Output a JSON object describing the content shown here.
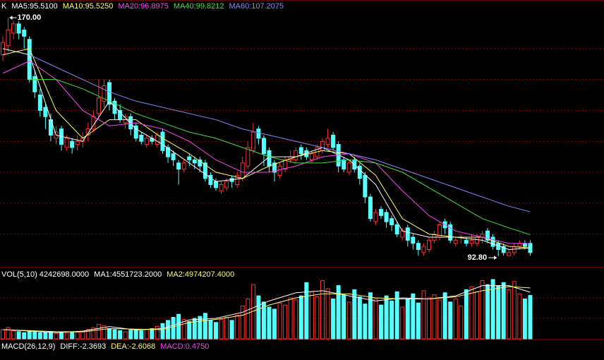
{
  "chart_data": [
    {
      "type": "candlestick",
      "legend": [
        {
          "text": "K",
          "color": "#ffffff"
        },
        {
          "text": "MA5:95.5100",
          "color": "#ffffff"
        },
        {
          "text": "MA10:95.5250",
          "color": "#ffff66"
        },
        {
          "text": "MA20:96.8975",
          "color": "#ff40ff"
        },
        {
          "text": "MA40:99.8212",
          "color": "#40e040"
        },
        {
          "text": "MA60:107.2075",
          "color": "#8888ff"
        }
      ],
      "up_color": "#ff3232",
      "down_color": "#54ffff",
      "ylim": [
        89.4,
        172.3
      ],
      "grid_lines": [
        100,
        110,
        120,
        130,
        140,
        150,
        160
      ],
      "open": [
        158,
        161,
        165,
        168,
        166,
        163,
        151,
        145,
        141,
        137,
        131,
        134,
        128,
        130,
        129,
        130,
        132,
        134,
        139,
        143,
        149,
        143,
        140,
        136,
        138,
        135,
        132,
        129,
        131,
        129,
        133,
        128,
        126,
        123,
        121,
        125,
        124,
        124,
        123,
        119,
        117,
        114,
        115,
        118,
        116,
        118,
        122,
        127,
        134,
        131,
        127,
        123,
        119,
        121,
        124,
        124,
        128,
        127,
        124,
        125,
        127,
        129,
        132,
        129,
        124,
        120,
        124,
        122,
        119,
        112,
        104,
        108,
        107,
        105,
        103,
        99,
        102,
        99,
        97,
        94,
        95,
        98,
        99,
        104,
        103,
        97,
        99,
        98,
        97,
        97,
        99,
        101,
        99,
        97,
        96,
        93,
        94,
        96,
        97,
        97
      ],
      "high": [
        164,
        170,
        169,
        169,
        167,
        164,
        153,
        147,
        142,
        139,
        135,
        135,
        132,
        131,
        132,
        133,
        136,
        140,
        150,
        150,
        150,
        144,
        142,
        139,
        139,
        136,
        133,
        132,
        132,
        133,
        134,
        129,
        127,
        124,
        124,
        126,
        125,
        125,
        124,
        120,
        118,
        117,
        118,
        119,
        120,
        125,
        130,
        136,
        135,
        132,
        128,
        124,
        123,
        125,
        127,
        128,
        129,
        128,
        127,
        129,
        131,
        134,
        133,
        130,
        125,
        124,
        125,
        123,
        120,
        113,
        108,
        109,
        108,
        106,
        104,
        102,
        103,
        100,
        98,
        97,
        99,
        101,
        104,
        105,
        104,
        99,
        100,
        99,
        100,
        100,
        101,
        102,
        100,
        98,
        97,
        95,
        97,
        98,
        98,
        98
      ],
      "low": [
        156,
        159,
        163,
        163,
        160,
        149,
        144,
        138,
        134,
        130,
        129,
        127,
        127,
        126,
        127,
        128,
        130,
        133,
        137,
        141,
        140,
        137,
        136,
        134,
        132,
        130,
        129,
        128,
        129,
        128,
        126,
        123,
        122,
        116,
        120,
        122,
        121,
        120,
        117,
        115,
        114,
        113,
        114,
        115,
        115,
        117,
        121,
        126,
        129,
        122,
        120,
        117,
        118,
        120,
        123,
        123,
        124,
        124,
        123,
        124,
        126,
        128,
        127,
        120,
        120,
        119,
        120,
        116,
        110,
        104,
        103,
        105,
        102,
        101,
        99,
        98,
        96,
        95,
        93,
        93,
        94,
        97,
        98,
        100,
        97,
        96,
        97,
        96,
        96,
        96,
        97,
        97,
        95,
        92.8,
        93,
        93,
        93,
        95,
        95,
        93
      ],
      "close": [
        162,
        166,
        168,
        165,
        164,
        150,
        146,
        140,
        138,
        132,
        133,
        129,
        131,
        128,
        130,
        131,
        134,
        138,
        144,
        148,
        142,
        139,
        137,
        138,
        134,
        131,
        130,
        131,
        130,
        132,
        127,
        125,
        124,
        121,
        123,
        124,
        123,
        122,
        118,
        116,
        115,
        116,
        117,
        117,
        119,
        123,
        128,
        133,
        131,
        126,
        122,
        120,
        122,
        124,
        125,
        127,
        126,
        125,
        126,
        128,
        130,
        131,
        128,
        122,
        121,
        123,
        121,
        118,
        112,
        105,
        107,
        106,
        104,
        103,
        100,
        101,
        98,
        97,
        95,
        96,
        98,
        100,
        103,
        102,
        98,
        98,
        99,
        97,
        98,
        99,
        100,
        98,
        96,
        95,
        94,
        94,
        96,
        97,
        96,
        94
      ],
      "lines": [
        {
          "color": "#ffffff",
          "x": [
            0,
            5,
            10,
            15,
            20,
            25,
            30,
            35,
            40,
            45,
            50,
            55,
            60,
            65,
            70,
            75,
            80,
            85,
            90,
            95,
            99
          ],
          "values": [
            160,
            158,
            132,
            130,
            143,
            134,
            129,
            123,
            117,
            118,
            125,
            125,
            128,
            124,
            116,
            101,
            99,
            99,
            98,
            95,
            95.5
          ]
        },
        {
          "color": "#ffff66",
          "x": [
            0,
            5,
            10,
            15,
            20,
            25,
            30,
            35,
            40,
            45,
            50,
            55,
            60,
            65,
            70,
            75,
            80,
            85,
            90,
            95,
            99
          ],
          "values": [
            158,
            160,
            140,
            131,
            137,
            137,
            131,
            126,
            120,
            118,
            122,
            125,
            127,
            126,
            119,
            105,
            100,
            99,
            99,
            96,
            95.5
          ]
        },
        {
          "color": "#ff40ff",
          "x": [
            0,
            5,
            10,
            15,
            20,
            25,
            30,
            35,
            40,
            45,
            50,
            55,
            60,
            65,
            70,
            75,
            80,
            85,
            90,
            95,
            99
          ],
          "values": [
            152,
            156,
            150,
            140,
            135,
            136,
            134,
            130,
            124,
            120,
            120,
            122,
            125,
            126,
            123,
            114,
            106,
            101,
            99,
            97,
            96.9
          ]
        },
        {
          "color": "#40e040",
          "x": [
            5,
            10,
            15,
            20,
            25,
            30,
            35,
            40,
            45,
            50,
            55,
            60,
            65,
            70,
            75,
            80,
            85,
            90,
            95,
            99
          ],
          "values": [
            150,
            150,
            147,
            143,
            139,
            136,
            133,
            131,
            128,
            125,
            123,
            123,
            124,
            123,
            120,
            115,
            110,
            105,
            102,
            99.8
          ]
        },
        {
          "color": "#8888ff",
          "x": [
            5,
            10,
            15,
            20,
            25,
            30,
            35,
            40,
            45,
            50,
            55,
            60,
            65,
            70,
            75,
            80,
            85,
            90,
            95,
            99
          ],
          "values": [
            158,
            154,
            150,
            146,
            143,
            141,
            139,
            137,
            134,
            132,
            130,
            128,
            126,
            124,
            121,
            118,
            115,
            112,
            109,
            107.2
          ]
        }
      ],
      "annotations": [
        {
          "candle": 1,
          "value": 170,
          "label": "170.00",
          "side": "right"
        },
        {
          "candle": 93,
          "value": 92.8,
          "label": "92.80",
          "side": "left"
        }
      ]
    },
    {
      "type": "bar",
      "legend": [
        {
          "text": "VOL(5,10) 4242698.0000",
          "color": "#ffffff"
        },
        {
          "text": "MA1:4551723.2000",
          "color": "#ffffff"
        },
        {
          "text": "MA2:4974207.4000",
          "color": "#ffff66"
        }
      ],
      "ylim": [
        0,
        6000000
      ],
      "grid_lines": [
        2000000,
        4000000
      ],
      "values": [
        900000,
        1100000,
        800000,
        700000,
        600000,
        800000,
        700000,
        600000,
        650000,
        700000,
        500000,
        600000,
        550000,
        700000,
        650000,
        750000,
        900000,
        1100000,
        1400000,
        1300000,
        1000000,
        900000,
        800000,
        700000,
        850000,
        900000,
        800000,
        900000,
        1000000,
        1200000,
        1500000,
        1800000,
        2100000,
        2400000,
        1900000,
        1700000,
        2000000,
        2200000,
        2500000,
        1800000,
        1600000,
        1900000,
        2100000,
        1800000,
        2300000,
        3200000,
        3900000,
        5300000,
        4200000,
        3600000,
        3100000,
        2900000,
        3500000,
        3300000,
        4000000,
        3800000,
        4200000,
        5500000,
        4600000,
        4100000,
        5700000,
        4900000,
        3900000,
        5200000,
        4300000,
        3600000,
        4800000,
        4100000,
        3400000,
        4500000,
        3900000,
        3300000,
        4200000,
        3700000,
        4600000,
        3100000,
        3900000,
        4400000,
        3500000,
        4700000,
        4000000,
        4300000,
        3800000,
        4500000,
        3600000,
        3900000,
        3200000,
        4800000,
        5100000,
        4600000,
        5700000,
        5300000,
        5800000,
        5200000,
        5500000,
        4800000,
        5600000,
        4400000,
        3900000,
        4242698
      ],
      "lines": [
        {
          "color": "#ffffff",
          "x": [
            0,
            5,
            10,
            15,
            20,
            25,
            30,
            35,
            40,
            45,
            50,
            55,
            60,
            65,
            70,
            75,
            80,
            85,
            90,
            95,
            99
          ],
          "values": [
            900000,
            760000,
            600000,
            750000,
            1200000,
            860000,
            1000000,
            1850000,
            2000000,
            2600000,
            3700000,
            4500000,
            4700000,
            4200000,
            3700000,
            4000000,
            3900000,
            4200000,
            5200000,
            5200000,
            4551723
          ]
        },
        {
          "color": "#ffff66",
          "x": [
            0,
            5,
            10,
            15,
            20,
            25,
            30,
            35,
            40,
            45,
            50,
            55,
            60,
            65,
            70,
            75,
            80,
            85,
            90,
            95,
            99
          ],
          "values": [
            900000,
            800000,
            700000,
            680000,
            1000000,
            950000,
            900000,
            1600000,
            1900000,
            2300000,
            3300000,
            4000000,
            4400000,
            4400000,
            4000000,
            3900000,
            3900000,
            4100000,
            4700000,
            5100000,
            4974207
          ]
        }
      ]
    },
    {
      "type": "indicator",
      "legend": [
        {
          "text": "MACD(26,12,9)",
          "color": "#ffffff"
        },
        {
          "text": "DIFF:-2.3693",
          "color": "#ffffff"
        },
        {
          "text": "DEA:-2.6068",
          "color": "#ffff66"
        },
        {
          "text": "MACD:0.4750",
          "color": "#ff40ff"
        }
      ]
    }
  ]
}
